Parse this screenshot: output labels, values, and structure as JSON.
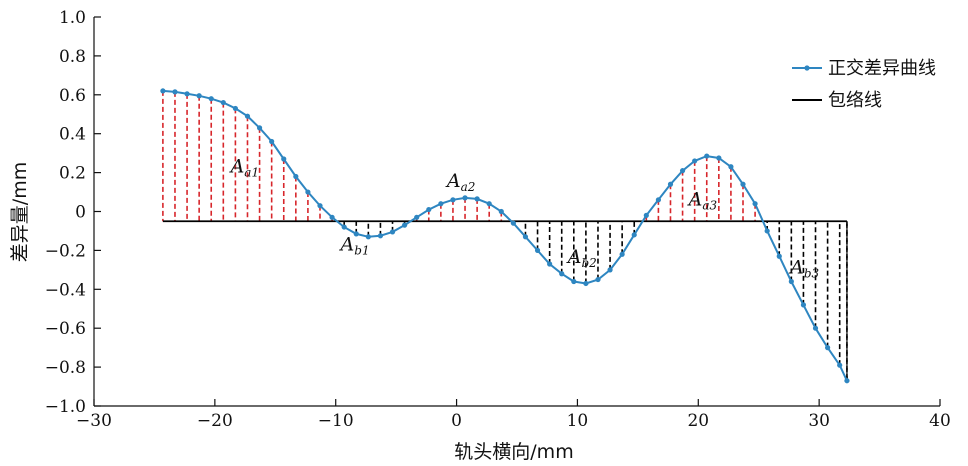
{
  "chart_data": {
    "type": "line",
    "xlabel": "轨头横向/mm",
    "ylabel": "差异量/mm",
    "xlim": [
      -30,
      40
    ],
    "ylim": [
      -1.0,
      1.0
    ],
    "x_ticks": [
      -30,
      -20,
      -10,
      0,
      10,
      20,
      30,
      40
    ],
    "x_tick_labels": [
      "−30",
      "−20",
      "−10",
      "0",
      "10",
      "20",
      "30",
      "40"
    ],
    "y_ticks": [
      1.0,
      0.8,
      0.6,
      0.4,
      0.2,
      0,
      -0.2,
      -0.4,
      -0.6,
      -0.8,
      -1.0
    ],
    "y_tick_labels": [
      "1.0",
      "0.8",
      "0.6",
      "0.4",
      "0.2",
      "0",
      "−0.2",
      "−0.4",
      "−0.6",
      "−0.8",
      "−1.0"
    ],
    "grid": false,
    "legend_position": "top-right",
    "series": [
      {
        "name": "正交差异曲线",
        "color": "#2e86c1",
        "x": [
          -24.3,
          -23.3,
          -22.3,
          -21.3,
          -20.3,
          -19.3,
          -18.3,
          -17.3,
          -16.3,
          -15.3,
          -14.3,
          -13.3,
          -12.3,
          -11.3,
          -10.3,
          -9.3,
          -8.3,
          -7.3,
          -6.3,
          -5.3,
          -4.3,
          -3.3,
          -2.3,
          -1.3,
          -0.3,
          0.7,
          1.7,
          2.7,
          3.7,
          4.7,
          5.7,
          6.7,
          7.7,
          8.7,
          9.7,
          10.7,
          11.7,
          12.7,
          13.7,
          14.7,
          15.7,
          16.7,
          17.7,
          18.7,
          19.7,
          20.7,
          21.7,
          22.7,
          23.7,
          24.7,
          25.7,
          26.7,
          27.7,
          28.7,
          29.7,
          30.7,
          31.7,
          32.3
        ],
        "y": [
          0.62,
          0.615,
          0.605,
          0.595,
          0.58,
          0.56,
          0.53,
          0.49,
          0.43,
          0.36,
          0.27,
          0.18,
          0.1,
          0.03,
          -0.03,
          -0.08,
          -0.115,
          -0.13,
          -0.125,
          -0.105,
          -0.07,
          -0.03,
          0.01,
          0.04,
          0.06,
          0.07,
          0.065,
          0.04,
          0.0,
          -0.06,
          -0.13,
          -0.2,
          -0.27,
          -0.32,
          -0.36,
          -0.37,
          -0.35,
          -0.3,
          -0.22,
          -0.12,
          -0.02,
          0.06,
          0.14,
          0.21,
          0.26,
          0.285,
          0.275,
          0.23,
          0.14,
          0.04,
          -0.1,
          -0.23,
          -0.36,
          -0.48,
          -0.6,
          -0.7,
          -0.79,
          -0.87
        ]
      },
      {
        "name": "包络线",
        "color": "#000000",
        "x": [
          -24.3,
          32.3
        ],
        "y": [
          -0.05,
          -0.05
        ]
      }
    ],
    "annotations": [
      {
        "base": "A",
        "sub": "a1",
        "x": -18.7,
        "y": 0.2
      },
      {
        "base": "A",
        "sub": "b1",
        "x": -9.6,
        "y": -0.2
      },
      {
        "base": "A",
        "sub": "a2",
        "x": -0.8,
        "y": 0.125
      },
      {
        "base": "A",
        "sub": "b2",
        "x": 9.2,
        "y": -0.265
      },
      {
        "base": "A",
        "sub": "a3",
        "x": 19.2,
        "y": 0.03
      },
      {
        "base": "A",
        "sub": "b3",
        "x": 27.6,
        "y": -0.32
      }
    ],
    "hatch": {
      "color_above": "#d7262b",
      "color_below": "#000000"
    }
  }
}
